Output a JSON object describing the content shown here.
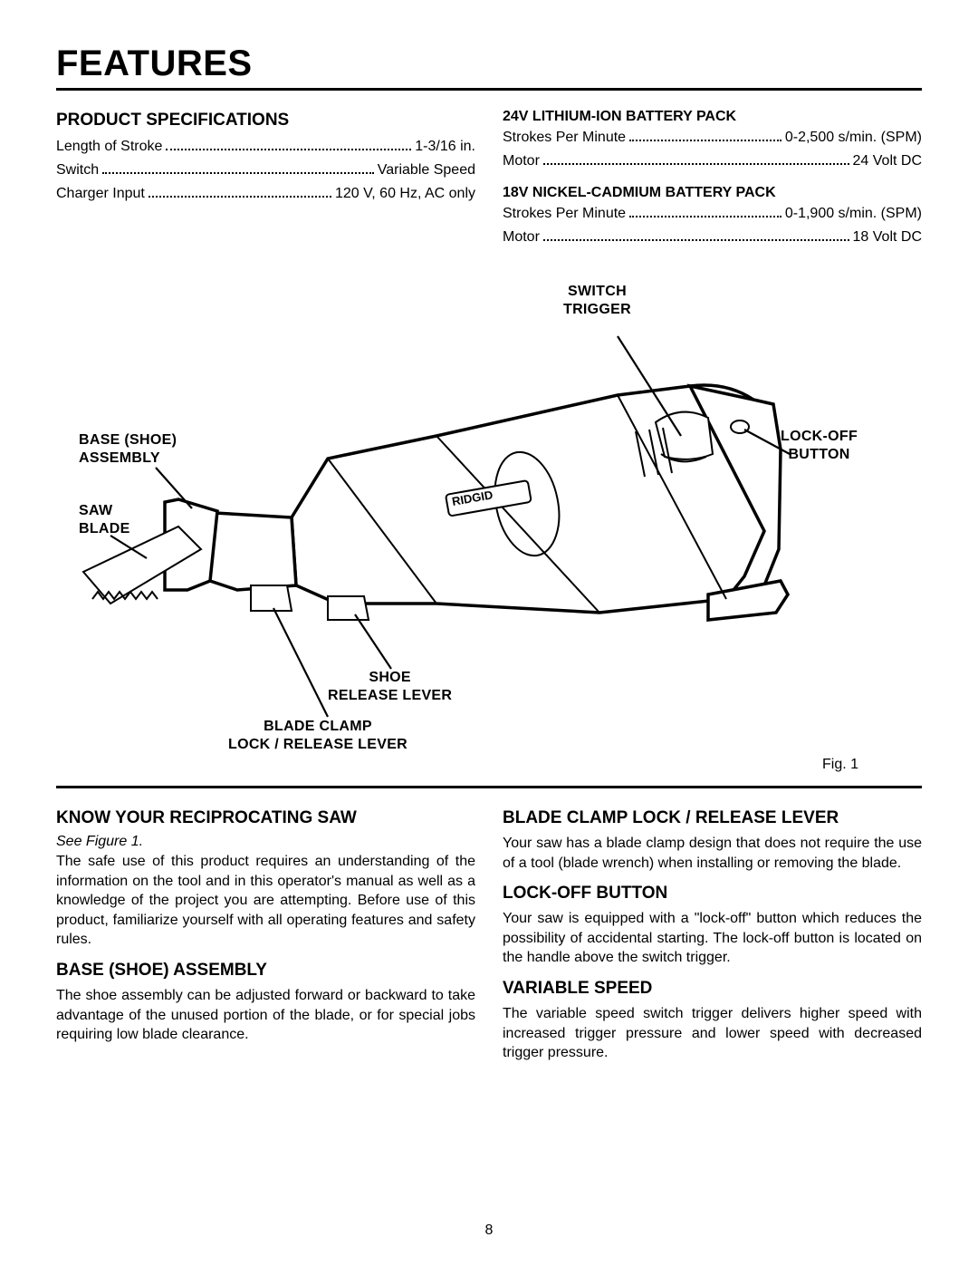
{
  "page": {
    "title": "FEATURES",
    "number": "8"
  },
  "specs": {
    "heading": "PRODUCT SPECIFICATIONS",
    "rows": [
      {
        "label": "Length of Stroke",
        "value": "1-3/16 in."
      },
      {
        "label": "Switch",
        "value": "Variable Speed"
      },
      {
        "label": "Charger Input",
        "value": "120 V, 60 Hz, AC only"
      }
    ],
    "battery24": {
      "heading": "24V LITHIUM-ION BATTERY PACK",
      "rows": [
        {
          "label": "Strokes Per Minute",
          "value": "0-2,500 s/min. (SPM)"
        },
        {
          "label": "Motor",
          "value": "24 Volt DC"
        }
      ]
    },
    "battery18": {
      "heading": "18V NICKEL-CADMIUM BATTERY PACK",
      "rows": [
        {
          "label": "Strokes Per Minute",
          "value": "0-1,900 s/min. (SPM)"
        },
        {
          "label": "Motor",
          "value": "18 Volt DC"
        }
      ]
    }
  },
  "figure": {
    "caption": "Fig. 1",
    "labels": {
      "switch_trigger": "SWITCH\nTRIGGER",
      "lockoff_button": "LOCK-OFF\nBUTTON",
      "base_shoe": "BASE (SHOE)\nASSEMBLY",
      "saw_blade": "SAW\nBLADE",
      "shoe_release": "SHOE\nRELEASE LEVER",
      "blade_clamp": "BLADE CLAMP\nLOCK / RELEASE LEVER"
    }
  },
  "sections": {
    "know": {
      "heading": "KNOW YOUR RECIPROCATING SAW",
      "see": "See Figure 1.",
      "body": "The safe use of this product requires an understanding of the information on the tool and in this operator's manual as well as a knowledge of the project you are attempting. Before use of this product, familiarize yourself with all operating features and safety rules."
    },
    "base": {
      "heading": "BASE (SHOE) ASSEMBLY",
      "body": "The shoe assembly can be adjusted forward or backward to take advantage of the unused portion of the blade, or for special jobs requiring low blade clearance."
    },
    "clamp": {
      "heading": "BLADE CLAMP LOCK / RELEASE LEVER",
      "body": "Your saw has a blade clamp design that does not require the use of a tool (blade wrench) when installing or removing the blade."
    },
    "lockoff": {
      "heading": "LOCK-OFF BUTTON",
      "body": "Your saw is equipped with a \"lock-off\" button which reduces the possibility of accidental starting. The lock-off button is located on the handle above the switch trigger."
    },
    "variable": {
      "heading": "VARIABLE SPEED",
      "body": "The variable speed switch trigger delivers higher speed with increased trigger pressure and lower speed with decreased trigger pressure."
    }
  }
}
